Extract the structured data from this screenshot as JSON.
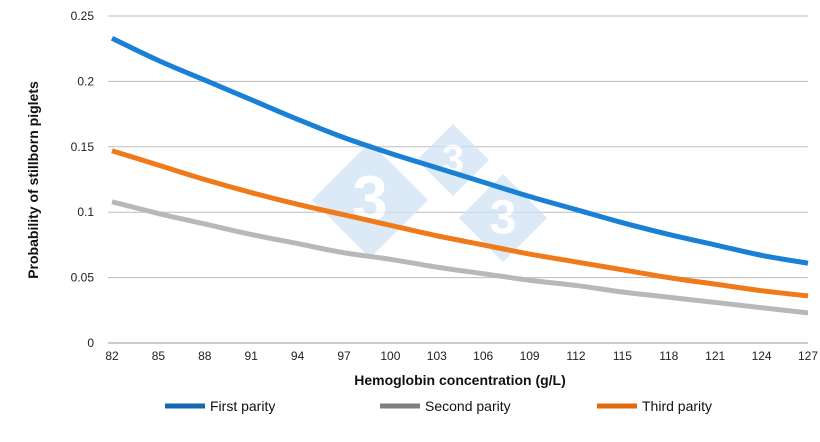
{
  "chart_data": {
    "type": "line",
    "title": "",
    "xlabel": "Hemoglobin concentration (g/L)",
    "ylabel": "Probability of stillborn piglets",
    "x": [
      82,
      85,
      88,
      91,
      94,
      97,
      100,
      103,
      106,
      109,
      112,
      115,
      118,
      121,
      124,
      127
    ],
    "x_tick_labels": [
      "82",
      "85",
      "88",
      "91",
      "94",
      "97",
      "100",
      "103",
      "106",
      "109",
      "112",
      "115",
      "118",
      "121",
      "124",
      "127"
    ],
    "y_tick_labels": [
      "0",
      "0.05",
      "0.1",
      "0.15",
      "0.2",
      "0.25"
    ],
    "y_ticks": [
      0,
      0.05,
      0.1,
      0.15,
      0.2,
      0.25
    ],
    "xlim": [
      82,
      127
    ],
    "ylim": [
      0,
      0.25
    ],
    "grid": "horizontal",
    "legend_position": "bottom",
    "series": [
      {
        "name": "First parity",
        "color": "#1a80d6",
        "legend_color": "#1565b0",
        "values": [
          0.233,
          0.216,
          0.201,
          0.186,
          0.171,
          0.157,
          0.145,
          0.134,
          0.123,
          0.112,
          0.102,
          0.092,
          0.083,
          0.075,
          0.067,
          0.061
        ]
      },
      {
        "name": "Second parity",
        "color": "#b8b8b8",
        "legend_color": "#7f7f7f",
        "values": [
          0.108,
          0.099,
          0.091,
          0.083,
          0.076,
          0.069,
          0.064,
          0.058,
          0.053,
          0.048,
          0.044,
          0.039,
          0.035,
          0.031,
          0.027,
          0.023
        ]
      },
      {
        "name": "Third parity",
        "color": "#f07a1a",
        "legend_color": "#e06a10",
        "values": [
          0.147,
          0.136,
          0.125,
          0.115,
          0.106,
          0.098,
          0.09,
          0.082,
          0.075,
          0.068,
          0.062,
          0.056,
          0.05,
          0.045,
          0.04,
          0.036
        ]
      }
    ]
  },
  "watermark": {
    "text": "3",
    "color": "#cfe3f3"
  }
}
